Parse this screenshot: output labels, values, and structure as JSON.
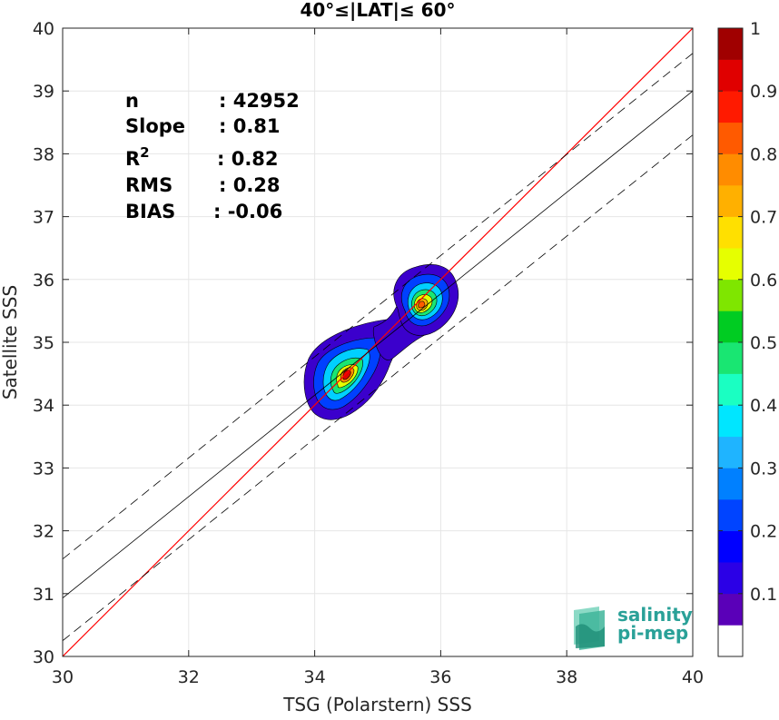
{
  "chart_data": {
    "type": "scatter",
    "title": "40°≤|LAT|≤ 60°",
    "xlabel": "TSG (Polarstern) SSS",
    "ylabel": "Satellite SSS",
    "xlim": [
      30,
      40
    ],
    "ylim": [
      30,
      40
    ],
    "xticks": [
      "30",
      "32",
      "34",
      "36",
      "38",
      "40"
    ],
    "yticks": [
      "30",
      "31",
      "32",
      "33",
      "34",
      "35",
      "36",
      "37",
      "38",
      "39",
      "40"
    ],
    "grid": true,
    "stats": [
      {
        "label": "n",
        "sep": ": ",
        "value": "42952"
      },
      {
        "label": "Slope",
        "sep": ": ",
        "value": "0.81"
      },
      {
        "label": "R",
        "sup": "2",
        "sep": ": ",
        "value": "0.82"
      },
      {
        "label": "RMS",
        "sep": ": ",
        "value": "0.28"
      },
      {
        "label": "BIAS",
        "sep": ": ",
        "value": "-0.06"
      }
    ],
    "lines": [
      {
        "name": "identity",
        "color": "#ff0000",
        "x": [
          30,
          40
        ],
        "y": [
          30,
          40
        ]
      },
      {
        "name": "fit",
        "color": "#000000",
        "x": [
          30,
          40
        ],
        "y": [
          30.93,
          39.0
        ]
      },
      {
        "name": "fit_upper",
        "color": "#000000",
        "dash": true,
        "x": [
          30,
          40
        ],
        "y": [
          31.55,
          39.6
        ]
      },
      {
        "name": "fit_lower",
        "color": "#000000",
        "dash": true,
        "x": [
          30,
          40
        ],
        "y": [
          30.25,
          38.3
        ]
      }
    ],
    "density_peaks": [
      {
        "x": 34.55,
        "y": 34.55,
        "peak": 1.0
      },
      {
        "x": 35.7,
        "y": 35.6,
        "peak": 0.75
      }
    ],
    "colorbar": {
      "ticks": [
        "0.1",
        "0.2",
        "0.3",
        "0.4",
        "0.5",
        "0.6",
        "0.7",
        "0.8",
        "0.9",
        "1"
      ],
      "colors": [
        "#ffffff",
        "#5a00b8",
        "#2b00e6",
        "#0000ff",
        "#0044ff",
        "#0080ff",
        "#1fb4ff",
        "#00e6ff",
        "#1affc2",
        "#19e672",
        "#00cc22",
        "#7fe600",
        "#e6ff00",
        "#ffe000",
        "#ffb000",
        "#ff8c00",
        "#ff5a00",
        "#ff1a00",
        "#e00000",
        "#a00000"
      ]
    },
    "logo": {
      "line1": "salinity",
      "line2": "pi-mep"
    }
  }
}
